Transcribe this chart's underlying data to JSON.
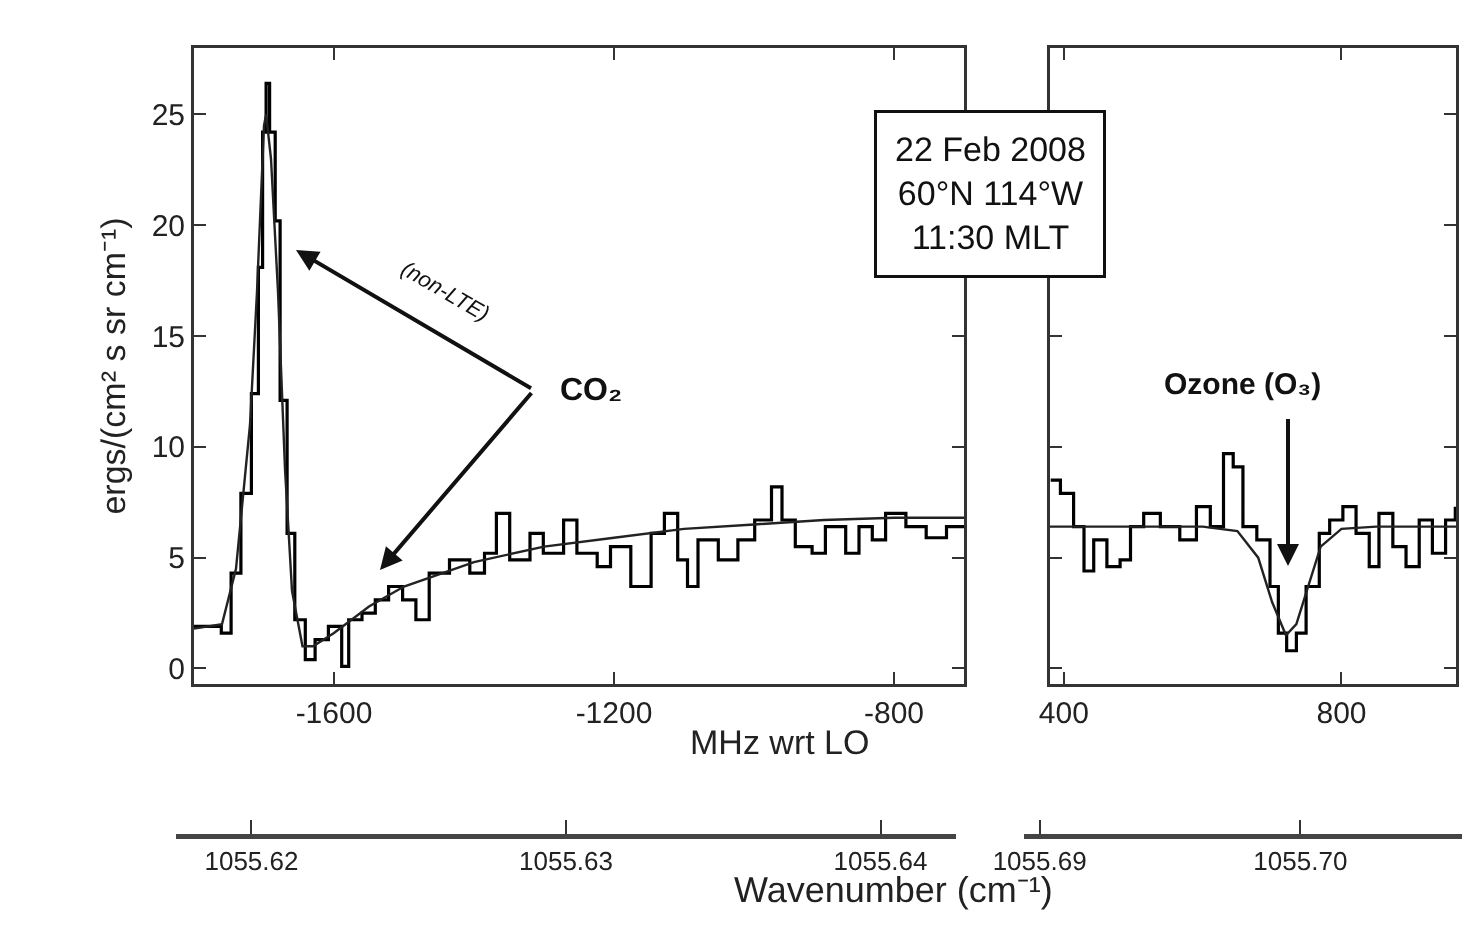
{
  "chart_data": [
    {
      "type": "step",
      "ylabel": "ergs/(cm² s sr cm⁻¹)",
      "xlabel": "MHz wrt LO",
      "x2label": "Wavenumber (cm⁻¹)",
      "xlim": [
        -1800,
        -700
      ],
      "xticks": [
        -1600,
        -1200,
        -800
      ],
      "ylim": [
        -0.7,
        28
      ],
      "yticks": [
        0,
        5,
        10,
        15,
        20,
        25
      ],
      "x2lim": [
        1055.6176,
        1055.6424
      ],
      "x2ticks": [
        1055.62,
        1055.63,
        1055.64
      ],
      "series": [
        {
          "color": "#000000",
          "x": [
            -1800,
            -1790,
            -1761,
            -1747,
            -1733,
            -1718,
            -1708,
            -1702,
            -1697,
            -1692,
            -1684,
            -1677,
            -1667,
            -1656,
            -1641,
            -1627,
            -1608,
            -1589,
            -1579,
            -1560,
            -1541,
            -1522,
            -1502,
            -1483,
            -1464,
            -1435,
            -1406,
            -1385,
            -1368,
            -1349,
            -1320,
            -1301,
            -1272,
            -1253,
            -1224,
            -1205,
            -1176,
            -1147,
            -1128,
            -1109,
            -1095,
            -1080,
            -1051,
            -1023,
            -999,
            -975,
            -960,
            -941,
            -917,
            -898,
            -869,
            -850,
            -831,
            -812,
            -783,
            -754,
            -725,
            -700
          ],
          "values": [
            1.9,
            1.9,
            1.6,
            4.3,
            7.9,
            12.4,
            18.1,
            24.2,
            26.4,
            24.2,
            20.2,
            12.1,
            6.1,
            2.2,
            0.4,
            1.3,
            1.9,
            0.1,
            2.2,
            2.5,
            3.1,
            3.7,
            3.1,
            2.2,
            4.3,
            4.9,
            4.3,
            5.2,
            7.0,
            4.9,
            6.1,
            5.2,
            6.7,
            5.2,
            4.6,
            5.5,
            3.7,
            6.1,
            7.0,
            4.9,
            3.7,
            5.8,
            4.9,
            5.8,
            6.7,
            8.2,
            6.7,
            5.5,
            5.2,
            6.4,
            5.2,
            6.4,
            5.8,
            7.0,
            6.4,
            5.9,
            6.4,
            6.4
          ]
        },
        {
          "type": "line",
          "color": "#222222",
          "x": [
            -1800,
            -1760,
            -1740,
            -1720,
            -1710,
            -1700,
            -1697,
            -1690,
            -1680,
            -1670,
            -1660,
            -1645,
            -1630,
            -1600,
            -1550,
            -1500,
            -1400,
            -1300,
            -1200,
            -1100,
            -1000,
            -900,
            -800,
            -700
          ],
          "values": [
            1.8,
            2.0,
            4.5,
            11,
            17,
            24.5,
            25,
            23,
            17,
            9,
            3.5,
            1.0,
            1.0,
            1.6,
            2.8,
            3.7,
            4.8,
            5.5,
            5.9,
            6.3,
            6.5,
            6.7,
            6.8,
            6.8
          ]
        }
      ],
      "annotations": [
        "(non-LTE)",
        "CO₂"
      ]
    },
    {
      "type": "step",
      "tick_labels": "x",
      "xlim": [
        380,
        965
      ],
      "xticks": [
        400,
        800
      ],
      "ylim": [
        -0.7,
        28
      ],
      "yticks": [
        0,
        5,
        10,
        15,
        20,
        25
      ],
      "x2lim": [
        1055.6894,
        1055.7062
      ],
      "x2ticks": [
        1055.69,
        {
          "value": 1055.7,
          "label": "1055.70"
        }
      ],
      "series": [
        {
          "color": "#000000",
          "x": [
            381,
            395,
            414,
            429,
            443,
            462,
            481,
            496,
            515,
            539,
            567,
            591,
            611,
            630,
            644,
            658,
            678,
            697,
            709,
            721,
            735,
            749,
            768,
            783,
            802,
            821,
            840,
            854,
            874,
            893,
            912,
            931,
            950,
            964
          ],
          "values": [
            8.5,
            7.9,
            6.4,
            4.4,
            5.8,
            4.6,
            4.9,
            6.4,
            7.0,
            6.4,
            5.8,
            7.3,
            6.4,
            9.7,
            9.1,
            6.4,
            5.8,
            3.7,
            1.6,
            0.8,
            1.6,
            3.7,
            6.1,
            6.7,
            7.3,
            6.1,
            4.6,
            7.0,
            5.5,
            4.6,
            6.7,
            5.2,
            6.7,
            7.3
          ]
        },
        {
          "type": "line",
          "color": "#222222",
          "x": [
            380,
            600,
            650,
            680,
            700,
            720,
            735,
            750,
            770,
            800,
            850,
            965
          ],
          "values": [
            6.4,
            6.4,
            6.2,
            5.0,
            3.0,
            1.5,
            2.0,
            3.5,
            5.5,
            6.3,
            6.4,
            6.4
          ]
        }
      ],
      "annotations": [
        "22 Feb 2008\n60°N 114°W\n11:30 MLT",
        "Ozone (O₃)"
      ]
    }
  ]
}
